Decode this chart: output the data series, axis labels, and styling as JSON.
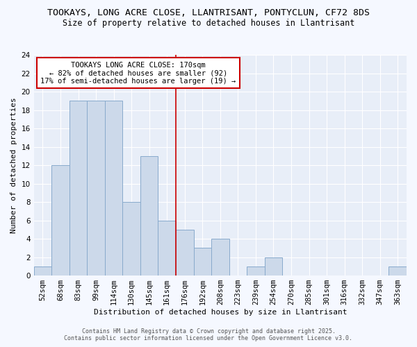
{
  "title1": "TOOKAYS, LONG ACRE CLOSE, LLANTRISANT, PONTYCLUN, CF72 8DS",
  "title2": "Size of property relative to detached houses in Llantrisant",
  "xlabel": "Distribution of detached houses by size in Llantrisant",
  "ylabel": "Number of detached properties",
  "categories": [
    "52sqm",
    "68sqm",
    "83sqm",
    "99sqm",
    "114sqm",
    "130sqm",
    "145sqm",
    "161sqm",
    "176sqm",
    "192sqm",
    "208sqm",
    "223sqm",
    "239sqm",
    "254sqm",
    "270sqm",
    "285sqm",
    "301sqm",
    "316sqm",
    "332sqm",
    "347sqm",
    "363sqm"
  ],
  "values": [
    1,
    12,
    19,
    19,
    19,
    8,
    13,
    6,
    5,
    3,
    4,
    0,
    1,
    2,
    0,
    0,
    0,
    0,
    0,
    0,
    1
  ],
  "bar_color": "#ccd9ea",
  "bar_edge_color": "#88aacc",
  "vline_x_index": 7,
  "vline_color": "#cc0000",
  "annotation_box_color": "#ffffff",
  "annotation_border_color": "#cc0000",
  "annotation_line1": "TOOKAYS LONG ACRE CLOSE: 170sqm",
  "annotation_line2": "← 82% of detached houses are smaller (92)",
  "annotation_line3": "17% of semi-detached houses are larger (19) →",
  "ylim": [
    0,
    24
  ],
  "yticks": [
    0,
    2,
    4,
    6,
    8,
    10,
    12,
    14,
    16,
    18,
    20,
    22,
    24
  ],
  "footer1": "Contains HM Land Registry data © Crown copyright and database right 2025.",
  "footer2": "Contains public sector information licensed under the Open Government Licence v3.0.",
  "bg_color": "#f5f8ff",
  "plot_bg_color": "#e8eef8",
  "grid_color": "#ffffff",
  "title_fontsize": 9.5,
  "subtitle_fontsize": 8.5,
  "ann_fontsize": 7.5,
  "axis_label_fontsize": 8,
  "tick_fontsize": 7.5,
  "footer_fontsize": 6
}
